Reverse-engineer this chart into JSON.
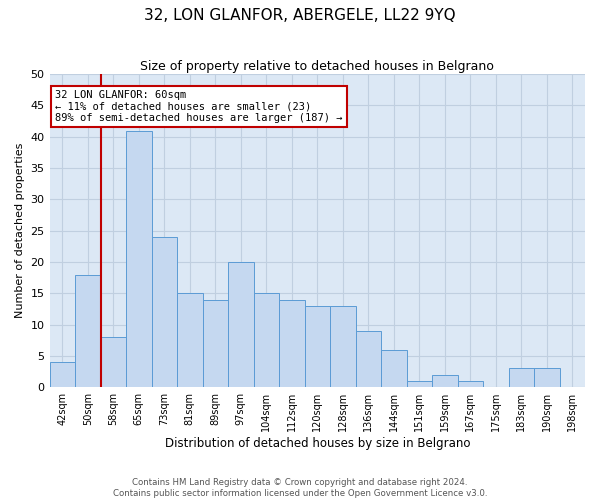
{
  "title": "32, LON GLANFOR, ABERGELE, LL22 9YQ",
  "subtitle": "Size of property relative to detached houses in Belgrano",
  "xlabel": "Distribution of detached houses by size in Belgrano",
  "ylabel": "Number of detached properties",
  "categories": [
    "42sqm",
    "50sqm",
    "58sqm",
    "65sqm",
    "73sqm",
    "81sqm",
    "89sqm",
    "97sqm",
    "104sqm",
    "112sqm",
    "120sqm",
    "128sqm",
    "136sqm",
    "144sqm",
    "151sqm",
    "159sqm",
    "167sqm",
    "175sqm",
    "183sqm",
    "190sqm",
    "198sqm"
  ],
  "values": [
    4,
    18,
    8,
    41,
    24,
    15,
    14,
    20,
    15,
    14,
    13,
    13,
    9,
    6,
    1,
    2,
    1,
    0,
    3,
    3,
    0
  ],
  "bar_color": "#c5d8f0",
  "bar_edge_color": "#5b9bd5",
  "grid_color": "#c0cfe0",
  "background_color": "#dce8f5",
  "vline_x": 2.0,
  "vline_color": "#c00000",
  "annotation_text": "32 LON GLANFOR: 60sqm\n← 11% of detached houses are smaller (23)\n89% of semi-detached houses are larger (187) →",
  "annotation_box_color": "#c00000",
  "ylim": [
    0,
    50
  ],
  "yticks": [
    0,
    5,
    10,
    15,
    20,
    25,
    30,
    35,
    40,
    45,
    50
  ],
  "footer_line1": "Contains HM Land Registry data © Crown copyright and database right 2024.",
  "footer_line2": "Contains public sector information licensed under the Open Government Licence v3.0."
}
